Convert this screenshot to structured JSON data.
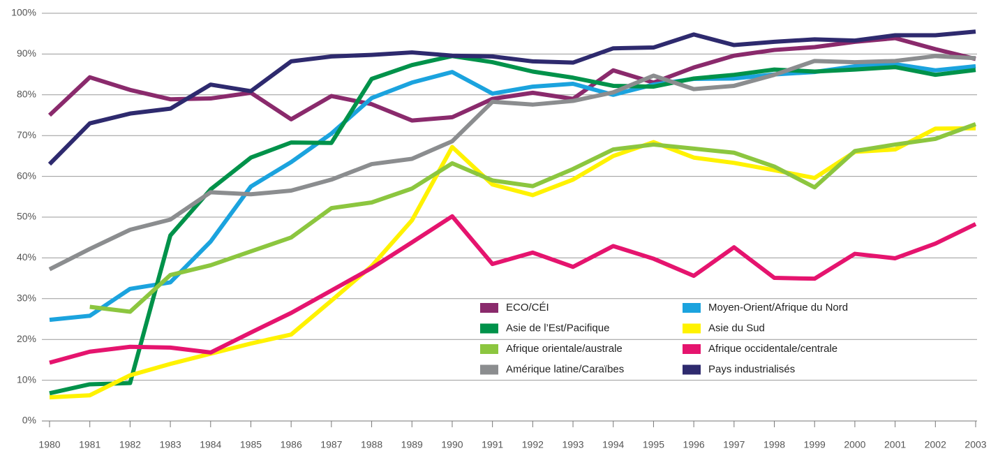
{
  "chart_data": {
    "type": "line",
    "x": [
      1980,
      1981,
      1982,
      1983,
      1984,
      1985,
      1986,
      1987,
      1988,
      1989,
      1990,
      1991,
      1992,
      1993,
      1994,
      1995,
      1996,
      1997,
      1998,
      1999,
      2000,
      2001,
      2002,
      2003
    ],
    "xlim": [
      1980,
      2003
    ],
    "xticks": [
      1980,
      1981,
      1982,
      1983,
      1984,
      1985,
      1986,
      1987,
      1988,
      1989,
      1990,
      1991,
      1992,
      1993,
      1994,
      1995,
      1996,
      1997,
      1998,
      1999,
      2000,
      2001,
      2002,
      2003
    ],
    "ylim": [
      0,
      100
    ],
    "yticks": [
      {
        "value": 0,
        "label": "0%"
      },
      {
        "value": 10,
        "label": "10%"
      },
      {
        "value": 20,
        "label": "20%"
      },
      {
        "value": 30,
        "label": "30%"
      },
      {
        "value": 40,
        "label": "40%"
      },
      {
        "value": 50,
        "label": "50%"
      },
      {
        "value": 60,
        "label": "60%"
      },
      {
        "value": 70,
        "label": "70%"
      },
      {
        "value": 80,
        "label": "80%"
      },
      {
        "value": 90,
        "label": "90%"
      },
      {
        "value": 100,
        "label": "100%"
      }
    ],
    "grid": true,
    "legend": "lower right",
    "series": [
      {
        "name": "ECO/CÉI",
        "color": "#8a2a6c",
        "values": [
          75,
          84.3,
          81.2,
          78.9,
          79.1,
          80.5,
          74,
          79.7,
          77.7,
          73.7,
          74.5,
          79,
          80.5,
          79,
          86,
          83,
          86.7,
          89.6,
          91,
          91.7,
          93,
          93.9,
          91.2,
          88.8
        ]
      },
      {
        "name": "Moyen-Orient/Afrique du Nord",
        "color": "#1ba3de",
        "values": [
          24.8,
          25.8,
          32.4,
          34,
          44,
          57.5,
          63.5,
          70.5,
          79.2,
          83,
          85.6,
          80.3,
          82,
          82.7,
          80,
          82.5,
          83.9,
          84,
          85,
          85.6,
          87,
          87.5,
          86,
          87
        ]
      },
      {
        "name": "Asie de l’Est/Pacifique",
        "color": "#00924a",
        "values": [
          6.8,
          9,
          9.3,
          45.5,
          56.8,
          64.6,
          68.3,
          68.2,
          83.9,
          87.3,
          89.5,
          88,
          85.7,
          84.2,
          82.2,
          82,
          84,
          84.9,
          86.2,
          85.7,
          86.2,
          86.8,
          84.9,
          86.1
        ]
      },
      {
        "name": "Asie du Sud",
        "color": "#fff200",
        "values": [
          5.8,
          6.3,
          11.2,
          14,
          16.5,
          19,
          21.2,
          29.5,
          38,
          49.2,
          67.2,
          58,
          55.4,
          59.2,
          65,
          68.4,
          64.6,
          63.3,
          61.5,
          59.6,
          66,
          66.6,
          71.7,
          71.8
        ]
      },
      {
        "name": "Afrique orientale/australe",
        "color": "#8cc63f",
        "values": [
          null,
          28,
          26.8,
          35.8,
          38.2,
          41.6,
          45,
          52.2,
          53.6,
          57,
          63.2,
          59,
          57.6,
          61.8,
          66.6,
          67.8,
          66.8,
          65.8,
          62.4,
          57.3,
          66.2,
          67.8,
          69.2,
          72.8
        ]
      },
      {
        "name": "Afrique occidentale/centrale",
        "color": "#e5146e",
        "values": [
          14.3,
          17,
          18.2,
          18,
          16.8,
          21.7,
          26.5,
          32,
          37.5,
          43.8,
          50.2,
          38.5,
          41.3,
          37.8,
          42.9,
          39.8,
          35.6,
          42.6,
          35.1,
          34.9,
          41,
          39.9,
          43.5,
          48.3
        ]
      },
      {
        "name": "Amérique latine/Caraïbes",
        "color": "#8b8d8f",
        "values": [
          37.2,
          42.2,
          46.9,
          49.4,
          56.1,
          55.6,
          56.5,
          59.2,
          63,
          64.3,
          68.6,
          78.3,
          77.6,
          78.5,
          80.6,
          84.7,
          81.4,
          82.2,
          84.9,
          88.3,
          88,
          88.3,
          89.5,
          89
        ]
      },
      {
        "name": "Pays industrialisés",
        "color": "#2e2a6e",
        "values": [
          63,
          73,
          75.4,
          76.6,
          82.5,
          80.9,
          88.2,
          89.4,
          89.8,
          90.4,
          89.6,
          89.4,
          88.2,
          87.9,
          91.4,
          91.6,
          94.8,
          92.2,
          93,
          93.6,
          93.3,
          94.6,
          94.6,
          95.5
        ]
      }
    ]
  }
}
